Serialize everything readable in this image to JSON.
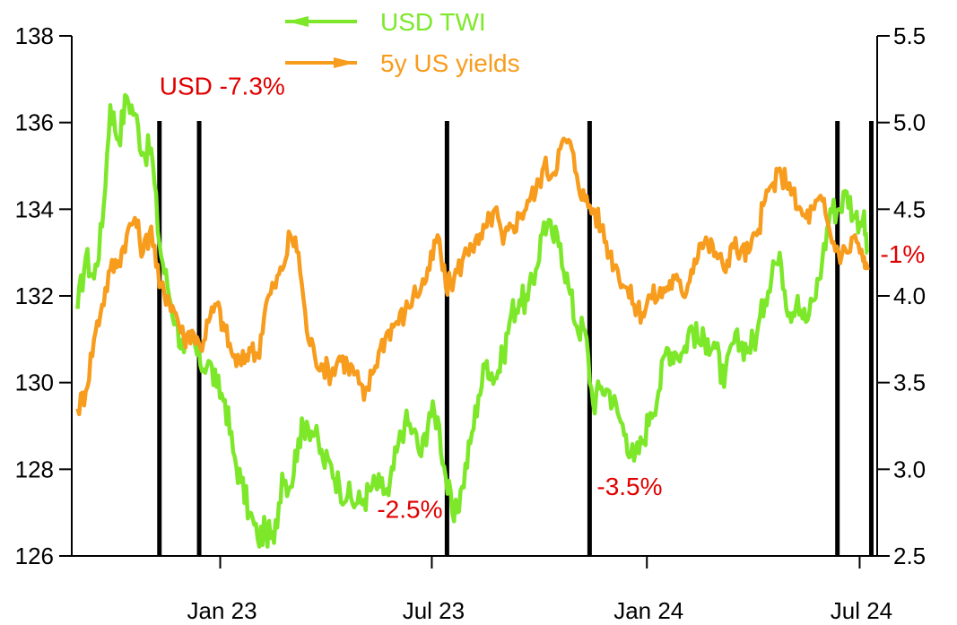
{
  "chart_data": {
    "type": "line",
    "title": "",
    "x_ticks": [
      "Jan 23",
      "Jul 23",
      "Jan 24",
      "Jul 24"
    ],
    "y_left": {
      "ticks": [
        "126",
        "128",
        "130",
        "132",
        "134",
        "136",
        "138"
      ],
      "range": [
        126,
        138
      ]
    },
    "y_right": {
      "ticks": [
        "2.5",
        "3.0",
        "3.5",
        "4.0",
        "4.5",
        "5.0",
        "5.5"
      ],
      "range": [
        2.5,
        5.5
      ]
    },
    "grid": false,
    "legend_position": "top",
    "series": [
      {
        "name": "USD TWI",
        "axis": "left",
        "color": "#7de82a",
        "marker": "arrow-left",
        "points": [
          [
            "2022-09-01",
            131.7
          ],
          [
            "2022-09-08",
            132.9
          ],
          [
            "2022-09-15",
            132.4
          ],
          [
            "2022-09-22",
            133.6
          ],
          [
            "2022-09-29",
            136.4
          ],
          [
            "2022-10-06",
            135.6
          ],
          [
            "2022-10-13",
            136.6
          ],
          [
            "2022-10-20",
            136.2
          ],
          [
            "2022-10-27",
            135.3
          ],
          [
            "2022-11-03",
            135.4
          ],
          [
            "2022-11-10",
            133.2
          ],
          [
            "2022-11-17",
            132.2
          ],
          [
            "2022-11-24",
            131.4
          ],
          [
            "2022-12-01",
            130.7
          ],
          [
            "2022-12-08",
            131.0
          ],
          [
            "2022-12-15",
            130.4
          ],
          [
            "2022-12-22",
            130.5
          ],
          [
            "2022-12-29",
            129.9
          ],
          [
            "2023-01-05",
            129.6
          ],
          [
            "2023-01-12",
            128.4
          ],
          [
            "2023-01-19",
            127.7
          ],
          [
            "2023-01-26",
            127.0
          ],
          [
            "2023-02-02",
            126.4
          ],
          [
            "2023-02-09",
            126.6
          ],
          [
            "2023-02-16",
            126.3
          ],
          [
            "2023-02-23",
            127.9
          ],
          [
            "2023-03-02",
            127.6
          ],
          [
            "2023-03-09",
            128.7
          ],
          [
            "2023-03-16",
            129.1
          ],
          [
            "2023-03-23",
            128.8
          ],
          [
            "2023-03-30",
            128.2
          ],
          [
            "2023-04-06",
            128.1
          ],
          [
            "2023-04-13",
            127.6
          ],
          [
            "2023-04-20",
            127.4
          ],
          [
            "2023-04-27",
            127.2
          ],
          [
            "2023-05-04",
            127.3
          ],
          [
            "2023-05-11",
            127.6
          ],
          [
            "2023-05-18",
            127.6
          ],
          [
            "2023-05-25",
            127.4
          ],
          [
            "2023-06-01",
            128.4
          ],
          [
            "2023-06-08",
            129.1
          ],
          [
            "2023-06-15",
            128.9
          ],
          [
            "2023-06-22",
            128.3
          ],
          [
            "2023-06-29",
            129.3
          ],
          [
            "2023-07-06",
            129.2
          ],
          [
            "2023-07-13",
            127.8
          ],
          [
            "2023-07-20",
            126.8
          ],
          [
            "2023-07-27",
            127.6
          ],
          [
            "2023-08-03",
            128.6
          ],
          [
            "2023-08-10",
            129.7
          ],
          [
            "2023-08-17",
            130.5
          ],
          [
            "2023-08-24",
            130.1
          ],
          [
            "2023-08-31",
            130.6
          ],
          [
            "2023-09-07",
            131.6
          ],
          [
            "2023-09-14",
            131.9
          ],
          [
            "2023-09-21",
            131.9
          ],
          [
            "2023-09-28",
            132.6
          ],
          [
            "2023-10-05",
            133.7
          ],
          [
            "2023-10-12",
            133.4
          ],
          [
            "2023-10-19",
            133.2
          ],
          [
            "2023-10-26",
            132.2
          ],
          [
            "2023-11-02",
            131.3
          ],
          [
            "2023-11-09",
            131.2
          ],
          [
            "2023-11-16",
            129.5
          ],
          [
            "2023-11-23",
            129.9
          ],
          [
            "2023-11-30",
            129.8
          ],
          [
            "2023-12-07",
            129.3
          ],
          [
            "2023-12-14",
            128.8
          ],
          [
            "2023-12-21",
            128.2
          ],
          [
            "2023-12-28",
            128.6
          ],
          [
            "2024-01-04",
            129.3
          ],
          [
            "2024-01-11",
            129.8
          ],
          [
            "2024-01-18",
            130.8
          ],
          [
            "2024-01-25",
            130.7
          ],
          [
            "2024-02-01",
            130.7
          ],
          [
            "2024-02-08",
            131.3
          ],
          [
            "2024-02-15",
            130.9
          ],
          [
            "2024-02-22",
            131.0
          ],
          [
            "2024-02-29",
            130.8
          ],
          [
            "2024-03-07",
            129.9
          ],
          [
            "2024-03-14",
            130.9
          ],
          [
            "2024-03-21",
            130.9
          ],
          [
            "2024-03-28",
            130.8
          ],
          [
            "2024-04-04",
            131.1
          ],
          [
            "2024-04-11",
            131.9
          ],
          [
            "2024-04-18",
            132.8
          ],
          [
            "2024-04-25",
            132.7
          ],
          [
            "2024-05-02",
            131.6
          ],
          [
            "2024-05-09",
            132.0
          ],
          [
            "2024-05-16",
            131.4
          ],
          [
            "2024-05-23",
            131.9
          ],
          [
            "2024-05-30",
            132.8
          ],
          [
            "2024-06-06",
            134.0
          ],
          [
            "2024-06-13",
            134.0
          ],
          [
            "2024-06-20",
            134.4
          ],
          [
            "2024-06-27",
            133.8
          ],
          [
            "2024-07-04",
            133.8
          ],
          [
            "2024-07-08",
            133.0
          ]
        ]
      },
      {
        "name": "5y US yields",
        "axis": "right",
        "color": "#f79c1c",
        "marker": "arrow-right",
        "points": [
          [
            "2022-09-01",
            3.35
          ],
          [
            "2022-09-08",
            3.45
          ],
          [
            "2022-09-15",
            3.75
          ],
          [
            "2022-09-22",
            3.95
          ],
          [
            "2022-09-29",
            4.15
          ],
          [
            "2022-10-06",
            4.2
          ],
          [
            "2022-10-13",
            4.35
          ],
          [
            "2022-10-20",
            4.45
          ],
          [
            "2022-10-27",
            4.25
          ],
          [
            "2022-11-03",
            4.4
          ],
          [
            "2022-11-10",
            4.05
          ],
          [
            "2022-11-17",
            4.0
          ],
          [
            "2022-11-24",
            3.9
          ],
          [
            "2022-12-01",
            3.75
          ],
          [
            "2022-12-08",
            3.8
          ],
          [
            "2022-12-15",
            3.7
          ],
          [
            "2022-12-22",
            3.85
          ],
          [
            "2022-12-29",
            3.95
          ],
          [
            "2023-01-05",
            3.8
          ],
          [
            "2023-01-12",
            3.65
          ],
          [
            "2023-01-19",
            3.6
          ],
          [
            "2023-01-26",
            3.7
          ],
          [
            "2023-02-02",
            3.65
          ],
          [
            "2023-02-09",
            3.95
          ],
          [
            "2023-02-16",
            4.05
          ],
          [
            "2023-02-23",
            4.15
          ],
          [
            "2023-03-02",
            4.35
          ],
          [
            "2023-03-09",
            4.25
          ],
          [
            "2023-03-16",
            3.8
          ],
          [
            "2023-03-23",
            3.65
          ],
          [
            "2023-03-30",
            3.6
          ],
          [
            "2023-04-06",
            3.55
          ],
          [
            "2023-04-13",
            3.65
          ],
          [
            "2023-04-20",
            3.6
          ],
          [
            "2023-04-27",
            3.55
          ],
          [
            "2023-05-04",
            3.4
          ],
          [
            "2023-05-11",
            3.55
          ],
          [
            "2023-05-18",
            3.7
          ],
          [
            "2023-05-25",
            3.8
          ],
          [
            "2023-06-01",
            3.85
          ],
          [
            "2023-06-08",
            3.9
          ],
          [
            "2023-06-15",
            4.0
          ],
          [
            "2023-06-22",
            4.05
          ],
          [
            "2023-06-29",
            4.15
          ],
          [
            "2023-07-06",
            4.35
          ],
          [
            "2023-07-13",
            4.05
          ],
          [
            "2023-07-20",
            4.1
          ],
          [
            "2023-07-27",
            4.2
          ],
          [
            "2023-08-03",
            4.3
          ],
          [
            "2023-08-10",
            4.3
          ],
          [
            "2023-08-17",
            4.4
          ],
          [
            "2023-08-24",
            4.5
          ],
          [
            "2023-08-31",
            4.3
          ],
          [
            "2023-09-07",
            4.4
          ],
          [
            "2023-09-14",
            4.45
          ],
          [
            "2023-09-21",
            4.55
          ],
          [
            "2023-09-28",
            4.6
          ],
          [
            "2023-10-05",
            4.75
          ],
          [
            "2023-10-12",
            4.7
          ],
          [
            "2023-10-19",
            4.85
          ],
          [
            "2023-10-26",
            4.9
          ],
          [
            "2023-11-02",
            4.7
          ],
          [
            "2023-11-09",
            4.55
          ],
          [
            "2023-11-16",
            4.5
          ],
          [
            "2023-11-23",
            4.4
          ],
          [
            "2023-11-30",
            4.25
          ],
          [
            "2023-12-07",
            4.15
          ],
          [
            "2023-12-14",
            4.05
          ],
          [
            "2023-12-21",
            3.95
          ],
          [
            "2023-12-28",
            3.9
          ],
          [
            "2024-01-04",
            4.0
          ],
          [
            "2024-01-11",
            4.0
          ],
          [
            "2024-01-18",
            4.05
          ],
          [
            "2024-01-25",
            4.1
          ],
          [
            "2024-02-01",
            4.0
          ],
          [
            "2024-02-08",
            4.15
          ],
          [
            "2024-02-15",
            4.3
          ],
          [
            "2024-02-22",
            4.3
          ],
          [
            "2024-02-29",
            4.25
          ],
          [
            "2024-03-07",
            4.15
          ],
          [
            "2024-03-14",
            4.3
          ],
          [
            "2024-03-21",
            4.25
          ],
          [
            "2024-03-28",
            4.25
          ],
          [
            "2024-04-04",
            4.35
          ],
          [
            "2024-04-11",
            4.55
          ],
          [
            "2024-04-18",
            4.65
          ],
          [
            "2024-04-25",
            4.7
          ],
          [
            "2024-05-02",
            4.65
          ],
          [
            "2024-05-09",
            4.5
          ],
          [
            "2024-05-16",
            4.45
          ],
          [
            "2024-05-23",
            4.5
          ],
          [
            "2024-05-30",
            4.55
          ],
          [
            "2024-06-06",
            4.35
          ],
          [
            "2024-06-13",
            4.25
          ],
          [
            "2024-06-20",
            4.25
          ],
          [
            "2024-06-27",
            4.35
          ],
          [
            "2024-07-04",
            4.2
          ],
          [
            "2024-07-08",
            4.15
          ]
        ]
      }
    ],
    "vertical_markers": [
      "2022-11-10",
      "2022-12-14",
      "2023-07-14",
      "2023-11-13",
      "2024-06-12",
      "2024-07-11"
    ],
    "annotations": [
      {
        "text": "USD -7.3%",
        "color": "#e00000",
        "x": "2022-11-10",
        "y": 136.4,
        "axis": "left"
      },
      {
        "text": "-2.5%",
        "color": "#e00000",
        "x": "2023-07-14",
        "y": 127.0,
        "axis": "left"
      },
      {
        "text": "-3.5%",
        "color": "#e00000",
        "x": "2023-11-13",
        "y": 127.7,
        "axis": "left"
      },
      {
        "text": "-1%",
        "color": "#e00000",
        "x": "2024-07-11",
        "y": 133.1,
        "axis": "left"
      }
    ]
  }
}
